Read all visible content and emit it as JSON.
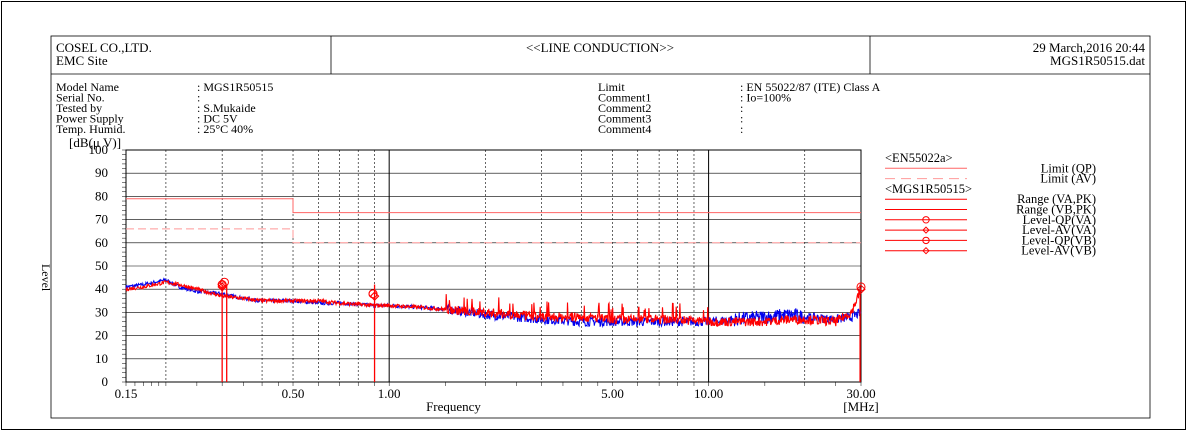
{
  "header": {
    "company": "COSEL CO.,LTD.",
    "site": "EMC Site",
    "title": "<<LINE CONDUCTION>>",
    "datetime": "29 March,2016 20:44",
    "file": "MGS1R50515.dat"
  },
  "info_left": [
    {
      "label": "Model Name",
      "value": ": MGS1R50515"
    },
    {
      "label": "Serial No.",
      "value": ":"
    },
    {
      "label": "Tested by",
      "value": ": S.Mukaide"
    },
    {
      "label": "Power Supply",
      "value": ": DC 5V"
    },
    {
      "label": "Temp. Humid.",
      "value": ": 25°C 40%"
    }
  ],
  "info_right": [
    {
      "label": "Limit",
      "value": ": EN 55022/87 (ITE) Class A"
    },
    {
      "label": "Comment1",
      "value": ": Io=100%"
    },
    {
      "label": "Comment2",
      "value": ":"
    },
    {
      "label": "Comment3",
      "value": ":"
    },
    {
      "label": "Comment4",
      "value": ":"
    }
  ],
  "colors": {
    "red": "#ff0000",
    "blue": "#0000ee",
    "limit_line": "#ff6666",
    "pink": "#ff9999"
  },
  "chart_data": {
    "type": "line",
    "xscale": "log",
    "xlim": [
      0.15,
      30
    ],
    "ylim": [
      0,
      100
    ],
    "ylabel": "Level",
    "yunit": "[dB(μ V)]",
    "xlabel": "Frequency",
    "xunit": "[MHz]",
    "yticks": [
      0,
      10,
      20,
      30,
      40,
      50,
      60,
      70,
      80,
      90,
      100
    ],
    "xticks": [
      {
        "value": 0.15,
        "label": "0.15"
      },
      {
        "value": 0.5,
        "label": "0.50"
      },
      {
        "value": 1.0,
        "label": "1.00"
      },
      {
        "value": 5.0,
        "label": "5.00"
      },
      {
        "value": 10.0,
        "label": "10.00"
      },
      {
        "value": 30.0,
        "label": "30.00"
      }
    ],
    "grid": true,
    "limits": [
      {
        "name": "Limit (QP)",
        "x": [
          0.15,
          0.5,
          0.5,
          30
        ],
        "y": [
          79,
          79,
          73,
          73
        ],
        "style": "solid"
      },
      {
        "name": "Limit (AV)",
        "x": [
          0.15,
          0.5,
          0.5,
          30
        ],
        "y": [
          66,
          66,
          60,
          60
        ],
        "style": "dashed"
      }
    ],
    "series": [
      {
        "name": "Range (VA,PK)",
        "color": "#0000ee",
        "x": [
          0.15,
          0.17,
          0.2,
          0.22,
          0.25,
          0.3,
          0.35,
          0.4,
          0.5,
          0.6,
          0.7,
          0.9,
          1.0,
          1.3,
          1.6,
          2.0,
          2.5,
          3.0,
          4.0,
          5.0,
          6.0,
          8.0,
          10.0,
          12.0,
          15.0,
          18.0,
          20.0,
          25.0,
          28.0,
          30.0
        ],
        "y": [
          41,
          42,
          44,
          41,
          39,
          38,
          36,
          35,
          35,
          34,
          34,
          33,
          33,
          32,
          31,
          29,
          28,
          27,
          26,
          26,
          26,
          26,
          26,
          27,
          28,
          29,
          28,
          27,
          28,
          30
        ]
      },
      {
        "name": "Range (VB,PK)",
        "color": "#ff0000",
        "x": [
          0.15,
          0.17,
          0.2,
          0.22,
          0.25,
          0.3,
          0.35,
          0.4,
          0.5,
          0.6,
          0.7,
          0.9,
          1.0,
          1.3,
          1.6,
          2.0,
          2.5,
          3.0,
          4.0,
          5.0,
          6.0,
          8.0,
          10.0,
          12.0,
          15.0,
          18.0,
          20.0,
          25.0,
          28.0,
          30.0
        ],
        "y": [
          40,
          41,
          43,
          42,
          40,
          37,
          36,
          35,
          35,
          35,
          34,
          33,
          33,
          32,
          31,
          30,
          29,
          28,
          28,
          27,
          27,
          27,
          26,
          26,
          26,
          27,
          27,
          26,
          30,
          40
        ]
      },
      {
        "name": "Level-QP(VA)",
        "color": "#ff0000",
        "marker": "circle",
        "x": [
          0.3,
          0.89,
          30
        ],
        "y": [
          42,
          38,
          41
        ]
      },
      {
        "name": "Level-AV(VA)",
        "color": "#ff0000",
        "marker": "diamond",
        "x": [
          0.3,
          0.9,
          30
        ],
        "y": [
          41,
          37,
          40
        ]
      },
      {
        "name": "Level-QP(VB)",
        "color": "#ff0000",
        "marker": "circle",
        "x": [
          0.305,
          0.89
        ],
        "y": [
          43,
          38
        ]
      },
      {
        "name": "Level-AV(VB)",
        "color": "#ff0000",
        "marker": "diamond",
        "x": [
          0.3,
          0.9
        ],
        "y": [
          42,
          37
        ]
      }
    ],
    "spurs": [
      {
        "x": 0.3,
        "color": "#ff0000"
      },
      {
        "x": 0.31,
        "color": "#ff0000"
      },
      {
        "x": 0.9,
        "color": "#ff0000"
      },
      {
        "x": 29.8,
        "color": "#ff0000"
      }
    ],
    "legend": {
      "group1": "<EN55022a>",
      "group2": "<MGS1R50515>",
      "entries": [
        "Limit (QP)",
        "Limit (AV)",
        "Range (VA,PK)",
        "Range (VB,PK)",
        "Level-QP(VA)",
        "Level-AV(VA)",
        "Level-QP(VB)",
        "Level-AV(VB)"
      ],
      "position": "right"
    }
  }
}
